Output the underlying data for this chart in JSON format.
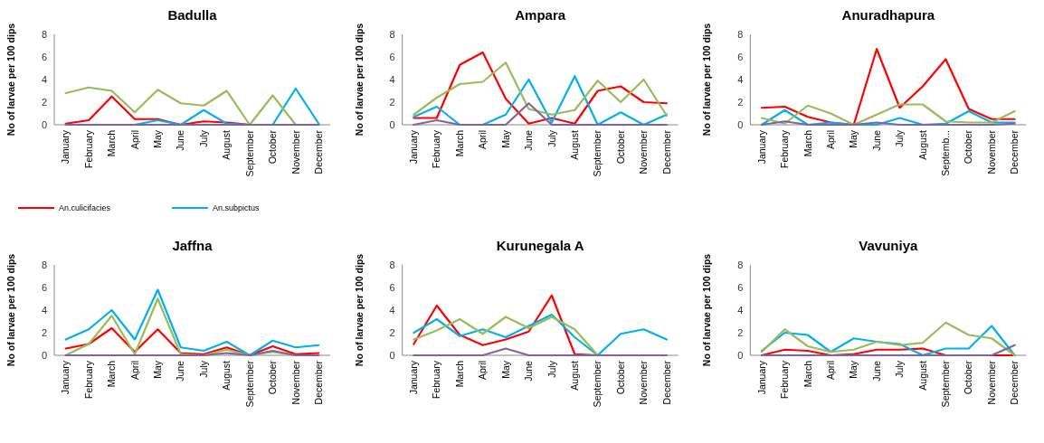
{
  "chart_data": [
    {
      "type": "line",
      "title": "Badulla",
      "ylabel": "No of larvae per 100 dips",
      "categories": [
        "January",
        "February",
        "March",
        "April",
        "May",
        "June",
        "July",
        "August",
        "September",
        "October",
        "November",
        "December"
      ],
      "ylim": [
        0,
        8
      ],
      "yticks": [
        0,
        2,
        4,
        6,
        8
      ],
      "legend": "bottom",
      "series": [
        {
          "name": "An.culicifacies",
          "color": "#ff0000",
          "values": [
            0.1,
            0.4,
            2.5,
            0.5,
            0.5,
            0,
            0.3,
            0.2,
            0,
            null,
            null,
            null
          ]
        },
        {
          "name": "An.subpictus",
          "color": "#00b0f0",
          "values": [
            null,
            null,
            null,
            0,
            0.4,
            0,
            1.3,
            0.1,
            0,
            0,
            3.2,
            0.1
          ]
        },
        {
          "color": "#9bbb59",
          "values": [
            2.8,
            3.3,
            3.0,
            1.1,
            3.1,
            1.9,
            1.7,
            3.0,
            0,
            2.6,
            0,
            null
          ]
        },
        {
          "color": "#8064a2",
          "values": [
            0,
            0,
            0,
            0,
            0,
            0,
            0,
            0,
            0,
            0,
            0,
            0
          ]
        }
      ]
    },
    {
      "type": "line",
      "title": "Ampara",
      "ylabel": "No of larvae per 100 dips",
      "categories": [
        "January",
        "February",
        "March",
        "April",
        "May",
        "June",
        "July",
        "August",
        "September",
        "October",
        "November",
        "December"
      ],
      "ylim": [
        0,
        8
      ],
      "yticks": [
        0,
        2,
        4,
        6,
        8
      ],
      "series": [
        {
          "color": "#ff0000",
          "values": [
            0.6,
            0.6,
            5.3,
            6.4,
            2.3,
            0.1,
            0.6,
            0.1,
            3.0,
            3.4,
            2.0,
            1.9
          ]
        },
        {
          "color": "#00b0f0",
          "values": [
            0.7,
            1.6,
            0,
            0,
            0.9,
            4.0,
            0.2,
            4.3,
            0,
            1.1,
            0,
            0.9
          ]
        },
        {
          "color": "#9bbb59",
          "values": [
            0.9,
            2.4,
            3.6,
            3.8,
            5.5,
            1.4,
            0.9,
            1.3,
            3.9,
            2.0,
            4.0,
            0.8
          ]
        },
        {
          "color": "#8064a2",
          "values": [
            0,
            0.4,
            0,
            0,
            0,
            1.9,
            0,
            0,
            0,
            0,
            0,
            0
          ]
        }
      ]
    },
    {
      "type": "line",
      "title": "Anuradhapura",
      "ylabel": "No of larvae per 100 dips",
      "categories": [
        "January",
        "February",
        "March",
        "April",
        "May",
        "June",
        "July",
        "August",
        "Septemb...",
        "October",
        "November",
        "December"
      ],
      "ylim": [
        0,
        8
      ],
      "yticks": [
        0,
        2,
        4,
        6,
        8
      ],
      "series": [
        {
          "color": "#ff0000",
          "values": [
            1.5,
            1.6,
            0.7,
            0.2,
            0,
            6.7,
            1.5,
            3.4,
            5.8,
            1.4,
            0.5,
            0.5
          ]
        },
        {
          "color": "#00b0f0",
          "values": [
            0,
            1.3,
            0,
            0.2,
            0,
            0,
            0.6,
            0,
            0.1,
            1.2,
            0.2,
            0.2
          ]
        },
        {
          "color": "#9bbb59",
          "values": [
            0.6,
            0.1,
            1.7,
            1.0,
            0,
            0.9,
            1.8,
            1.8,
            0.3,
            0.2,
            0.2,
            1.2
          ]
        },
        {
          "color": "#8064a2",
          "values": [
            0,
            0.3,
            0,
            0,
            0,
            0.2,
            0,
            0,
            0,
            0,
            0,
            0.1
          ]
        }
      ]
    },
    {
      "type": "line",
      "title": "Jaffna",
      "ylabel": "No of larvae per 100 dips",
      "categories": [
        "January",
        "February",
        "March",
        "April",
        "May",
        "June",
        "July",
        "August",
        "September",
        "October",
        "November",
        "December"
      ],
      "ylim": [
        0,
        8
      ],
      "yticks": [
        0,
        2,
        4,
        6,
        8
      ],
      "series": [
        {
          "color": "#ff0000",
          "values": [
            0.6,
            1.0,
            2.4,
            0.3,
            2.3,
            0.2,
            0.1,
            0.7,
            0,
            0.8,
            0.1,
            0.2
          ]
        },
        {
          "color": "#00b0f0",
          "values": [
            1.4,
            2.3,
            4.0,
            1.4,
            5.8,
            0.7,
            0.4,
            1.2,
            0,
            1.3,
            0.7,
            0.9
          ]
        },
        {
          "color": "#9bbb59",
          "values": [
            0,
            1.0,
            3.5,
            0.1,
            5.0,
            0.1,
            0,
            0.5,
            0,
            0.3,
            0,
            0
          ]
        },
        {
          "color": "#8064a2",
          "values": [
            0,
            0,
            0,
            0,
            0,
            0,
            0,
            0.2,
            0,
            0.4,
            0,
            0
          ]
        }
      ]
    },
    {
      "type": "line",
      "title": "Kurunegala A",
      "ylabel": "No of larvae per 100 dips",
      "categories": [
        "January",
        "February",
        "March",
        "April",
        "May",
        "June",
        "July",
        "August",
        "September",
        "October",
        "November",
        "December"
      ],
      "ylim": [
        0,
        8
      ],
      "yticks": [
        0,
        2,
        4,
        6,
        8
      ],
      "series": [
        {
          "color": "#ff0000",
          "values": [
            1.0,
            4.4,
            1.8,
            0.9,
            1.4,
            2.1,
            5.3,
            0.1,
            0,
            null,
            null,
            null
          ]
        },
        {
          "color": "#00b0f0",
          "values": [
            2.0,
            3.2,
            1.7,
            2.3,
            1.6,
            2.6,
            3.6,
            1.6,
            0,
            1.9,
            2.3,
            1.4
          ]
        },
        {
          "color": "#9bbb59",
          "values": [
            1.4,
            2.2,
            3.2,
            1.9,
            3.4,
            2.4,
            3.4,
            2.3,
            0,
            null,
            null,
            null
          ]
        },
        {
          "color": "#8064a2",
          "values": [
            0,
            0,
            0,
            0,
            0.6,
            0,
            0,
            0,
            0,
            0,
            0,
            0
          ]
        }
      ]
    },
    {
      "type": "line",
      "title": "Vavuniya",
      "ylabel": "No of larvae per 100 dips",
      "categories": [
        "January",
        "February",
        "March",
        "April",
        "May",
        "June",
        "July",
        "August",
        "September",
        "October",
        "November",
        "December"
      ],
      "ylim": [
        0,
        8
      ],
      "yticks": [
        0,
        2,
        4,
        6,
        8
      ],
      "series": [
        {
          "color": "#ff0000",
          "values": [
            0,
            0.5,
            0.4,
            0,
            0.1,
            0.5,
            0.5,
            0.6,
            0,
            0,
            0,
            0
          ]
        },
        {
          "color": "#00b0f0",
          "values": [
            0.4,
            2.0,
            1.8,
            0.3,
            1.5,
            1.2,
            1.0,
            0,
            0.6,
            0.6,
            2.6,
            0
          ]
        },
        {
          "color": "#9bbb59",
          "values": [
            0.3,
            2.3,
            0.8,
            0.3,
            0.5,
            1.2,
            0.9,
            1.1,
            2.9,
            1.8,
            1.5,
            0
          ]
        },
        {
          "color": "#8064a2",
          "values": [
            0,
            0,
            0,
            0,
            0,
            0,
            0,
            0,
            0,
            0,
            0,
            0.9
          ]
        }
      ]
    }
  ]
}
